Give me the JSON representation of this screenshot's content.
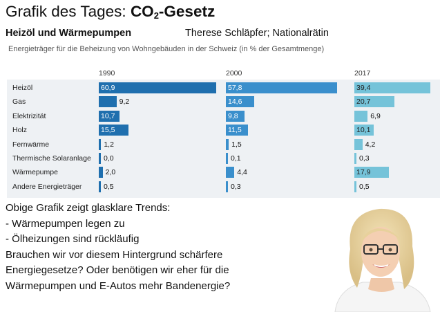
{
  "header": {
    "title_prefix": "Grafik des Tages: ",
    "title_co": "CO",
    "title_sub": "2",
    "title_suffix": "-Gesetz",
    "subtitle": "Heizöl und Wärmepumpen",
    "author": "Therese Schläpfer; Nationalrätin"
  },
  "chart_data": {
    "type": "bar",
    "title": "Energieträger für die Beheizung von Wohngebäuden in der Schweiz (in % der Gesamtmenge)",
    "orientation": "horizontal",
    "panels": [
      "1990",
      "2000",
      "2017"
    ],
    "categories": [
      "Heizöl",
      "Gas",
      "Elektrizität",
      "Holz",
      "Fernwärme",
      "Thermische Solaranlage",
      "Wärmepumpe",
      "Andere Energieträger"
    ],
    "series": [
      {
        "name": "1990",
        "values": [
          60.9,
          9.2,
          10.7,
          15.5,
          1.2,
          0.0,
          2.0,
          0.5
        ],
        "labels": [
          "60,9",
          "9,2",
          "10,7",
          "15,5",
          "1,2",
          "0,0",
          "2,0",
          "0,5"
        ],
        "color": "#1f6fae"
      },
      {
        "name": "2000",
        "values": [
          57.8,
          14.6,
          9.8,
          11.5,
          1.5,
          0.1,
          4.4,
          0.3
        ],
        "labels": [
          "57,8",
          "14,6",
          "9,8",
          "11,5",
          "1,5",
          "0,1",
          "4,4",
          "0,3"
        ],
        "color": "#3a8fcc"
      },
      {
        "name": "2017",
        "values": [
          39.4,
          20.7,
          6.9,
          10.1,
          4.2,
          0.3,
          17.9,
          0.5
        ],
        "labels": [
          "39,4",
          "20,7",
          "6,9",
          "10,1",
          "4,2",
          "0,3",
          "17,9",
          "0,5"
        ],
        "color": "#75c3d9"
      }
    ],
    "xlim": [
      0,
      61
    ]
  },
  "body": {
    "lines": [
      "Obige Grafik zeigt glasklare Trends:",
      "- Wärmepumpen legen zu",
      "- Ölheizungen sind rückläufig",
      "Brauchen wir vor diesem Hintergrund schärfere",
      "Energiegesetze? Oder benötigen wir eher für die",
      "Wärmepumpen und E-Autos mehr Bandenergie?"
    ]
  }
}
